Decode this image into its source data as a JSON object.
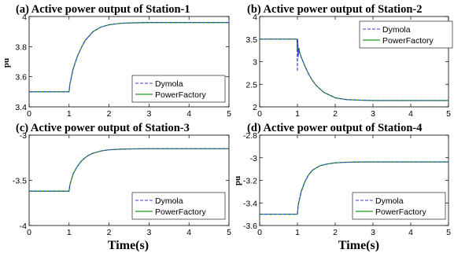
{
  "chart_data": [
    {
      "type": "line",
      "title": "(a) Active power output of Station-1",
      "ylabel": "pu",
      "xlabel": "",
      "xlim": [
        0,
        5
      ],
      "ylim": [
        3.4,
        4
      ],
      "xticks": [
        0,
        1,
        2,
        3,
        4,
        5
      ],
      "yticks": [
        3.4,
        3.6,
        3.8,
        4
      ],
      "ytick_labels": [
        "3.4",
        "3.6",
        "3.8",
        "4"
      ],
      "legend_position": "bottom-right",
      "series": [
        {
          "name": "Dymola",
          "style": "dashed",
          "color": "#3b3bd6",
          "x": [
            0,
            1,
            1.02,
            1.1,
            1.2,
            1.3,
            1.4,
            1.5,
            1.6,
            1.8,
            2.0,
            2.3,
            2.6,
            3.0,
            4.0,
            5.0
          ],
          "y": [
            3.5,
            3.5,
            3.55,
            3.65,
            3.73,
            3.79,
            3.84,
            3.87,
            3.9,
            3.93,
            3.945,
            3.955,
            3.958,
            3.96,
            3.96,
            3.96
          ]
        },
        {
          "name": "PowerFactory",
          "style": "solid",
          "color": "#1aa01a",
          "x": [
            0,
            1,
            1.02,
            1.1,
            1.2,
            1.3,
            1.4,
            1.5,
            1.6,
            1.8,
            2.0,
            2.3,
            2.6,
            3.0,
            4.0,
            5.0
          ],
          "y": [
            3.5,
            3.5,
            3.55,
            3.65,
            3.73,
            3.79,
            3.84,
            3.87,
            3.9,
            3.93,
            3.945,
            3.955,
            3.958,
            3.96,
            3.96,
            3.96
          ]
        }
      ]
    },
    {
      "type": "line",
      "title": "(b) Active power output of Station-2",
      "ylabel": "",
      "xlabel": "",
      "xlim": [
        0,
        5
      ],
      "ylim": [
        2,
        4
      ],
      "xticks": [
        0,
        1,
        2,
        3,
        4,
        5
      ],
      "yticks": [
        2,
        2.5,
        3,
        3.5,
        4
      ],
      "ytick_labels": [
        "2",
        "2.5",
        "3",
        "3.5",
        "4"
      ],
      "legend_position": "top-right",
      "series": [
        {
          "name": "Dymola",
          "style": "dashed",
          "color": "#3b3bd6",
          "x": [
            0,
            0.99,
            1.0,
            1.01,
            1.02,
            1.04,
            1.06,
            1.1,
            1.2,
            1.3,
            1.4,
            1.5,
            1.7,
            2.0,
            2.3,
            2.6,
            3.0,
            4.0,
            5.0
          ],
          "y": [
            3.5,
            3.5,
            2.78,
            3.5,
            3.1,
            3.3,
            3.2,
            3.1,
            2.9,
            2.72,
            2.58,
            2.47,
            2.32,
            2.2,
            2.16,
            2.15,
            2.14,
            2.14,
            2.14
          ]
        },
        {
          "name": "PowerFactory",
          "style": "solid",
          "color": "#1aa01a",
          "x": [
            0,
            0.99,
            1.0,
            1.01,
            1.02,
            1.04,
            1.06,
            1.1,
            1.2,
            1.3,
            1.4,
            1.5,
            1.7,
            2.0,
            2.3,
            2.6,
            3.0,
            4.0,
            5.0
          ],
          "y": [
            3.5,
            3.5,
            3.22,
            3.4,
            3.15,
            3.3,
            3.2,
            3.1,
            2.9,
            2.72,
            2.58,
            2.47,
            2.32,
            2.2,
            2.16,
            2.15,
            2.14,
            2.14,
            2.14
          ]
        }
      ]
    },
    {
      "type": "line",
      "title": "(c) Active power output of Station-3",
      "ylabel": "",
      "xlabel": "",
      "xlim": [
        0,
        5
      ],
      "ylim": [
        -4,
        -3
      ],
      "xticks": [
        0,
        1,
        2,
        3,
        4,
        5
      ],
      "yticks": [
        -4,
        -3.5,
        -3
      ],
      "ytick_labels": [
        "-4",
        "-3.5",
        "-3"
      ],
      "legend_position": "bottom-right",
      "series": [
        {
          "name": "Dymola",
          "style": "dashed",
          "color": "#3b3bd6",
          "x": [
            0,
            1,
            1.02,
            1.1,
            1.2,
            1.3,
            1.4,
            1.5,
            1.6,
            1.8,
            2.0,
            2.3,
            2.6,
            3.0,
            4.0,
            5.0
          ],
          "y": [
            -3.62,
            -3.62,
            -3.55,
            -3.43,
            -3.35,
            -3.29,
            -3.25,
            -3.22,
            -3.2,
            -3.175,
            -3.162,
            -3.155,
            -3.152,
            -3.15,
            -3.15,
            -3.15
          ]
        },
        {
          "name": "PowerFactory",
          "style": "solid",
          "color": "#1aa01a",
          "x": [
            0,
            1,
            1.02,
            1.1,
            1.2,
            1.3,
            1.4,
            1.5,
            1.6,
            1.8,
            2.0,
            2.3,
            2.6,
            3.0,
            4.0,
            5.0
          ],
          "y": [
            -3.62,
            -3.62,
            -3.55,
            -3.43,
            -3.35,
            -3.29,
            -3.25,
            -3.22,
            -3.2,
            -3.175,
            -3.162,
            -3.155,
            -3.152,
            -3.15,
            -3.15,
            -3.15
          ]
        }
      ]
    },
    {
      "type": "line",
      "title": "(d) Active power output of Station-4",
      "ylabel": "pu",
      "xlabel": "",
      "xlim": [
        0,
        5
      ],
      "ylim": [
        -3.6,
        -2.8
      ],
      "xticks": [
        0,
        1,
        2,
        3,
        4,
        5
      ],
      "yticks": [
        -3.6,
        -3.4,
        -3.2,
        -3,
        -2.8
      ],
      "ytick_labels": [
        "-3.6",
        "-3.4",
        "-3.2",
        "-3",
        "-2.8"
      ],
      "legend_position": "bottom-right",
      "series": [
        {
          "name": "Dymola",
          "style": "dashed",
          "color": "#3b3bd6",
          "x": [
            0,
            1,
            1.02,
            1.1,
            1.2,
            1.3,
            1.4,
            1.5,
            1.6,
            1.8,
            2.0,
            2.3,
            2.6,
            3.0,
            4.0,
            5.0
          ],
          "y": [
            -3.5,
            -3.5,
            -3.42,
            -3.3,
            -3.21,
            -3.15,
            -3.11,
            -3.09,
            -3.07,
            -3.055,
            -3.045,
            -3.04,
            -3.038,
            -3.037,
            -3.037,
            -3.037
          ]
        },
        {
          "name": "PowerFactory",
          "style": "solid",
          "color": "#1aa01a",
          "x": [
            0,
            1,
            1.02,
            1.1,
            1.2,
            1.3,
            1.4,
            1.5,
            1.6,
            1.8,
            2.0,
            2.3,
            2.6,
            3.0,
            4.0,
            5.0
          ],
          "y": [
            -3.5,
            -3.5,
            -3.42,
            -3.3,
            -3.21,
            -3.15,
            -3.11,
            -3.09,
            -3.07,
            -3.055,
            -3.045,
            -3.04,
            -3.038,
            -3.037,
            -3.037,
            -3.037
          ]
        }
      ]
    }
  ],
  "figure": {
    "bottom_labels": [
      "Time(s)",
      "Time(s)"
    ]
  }
}
